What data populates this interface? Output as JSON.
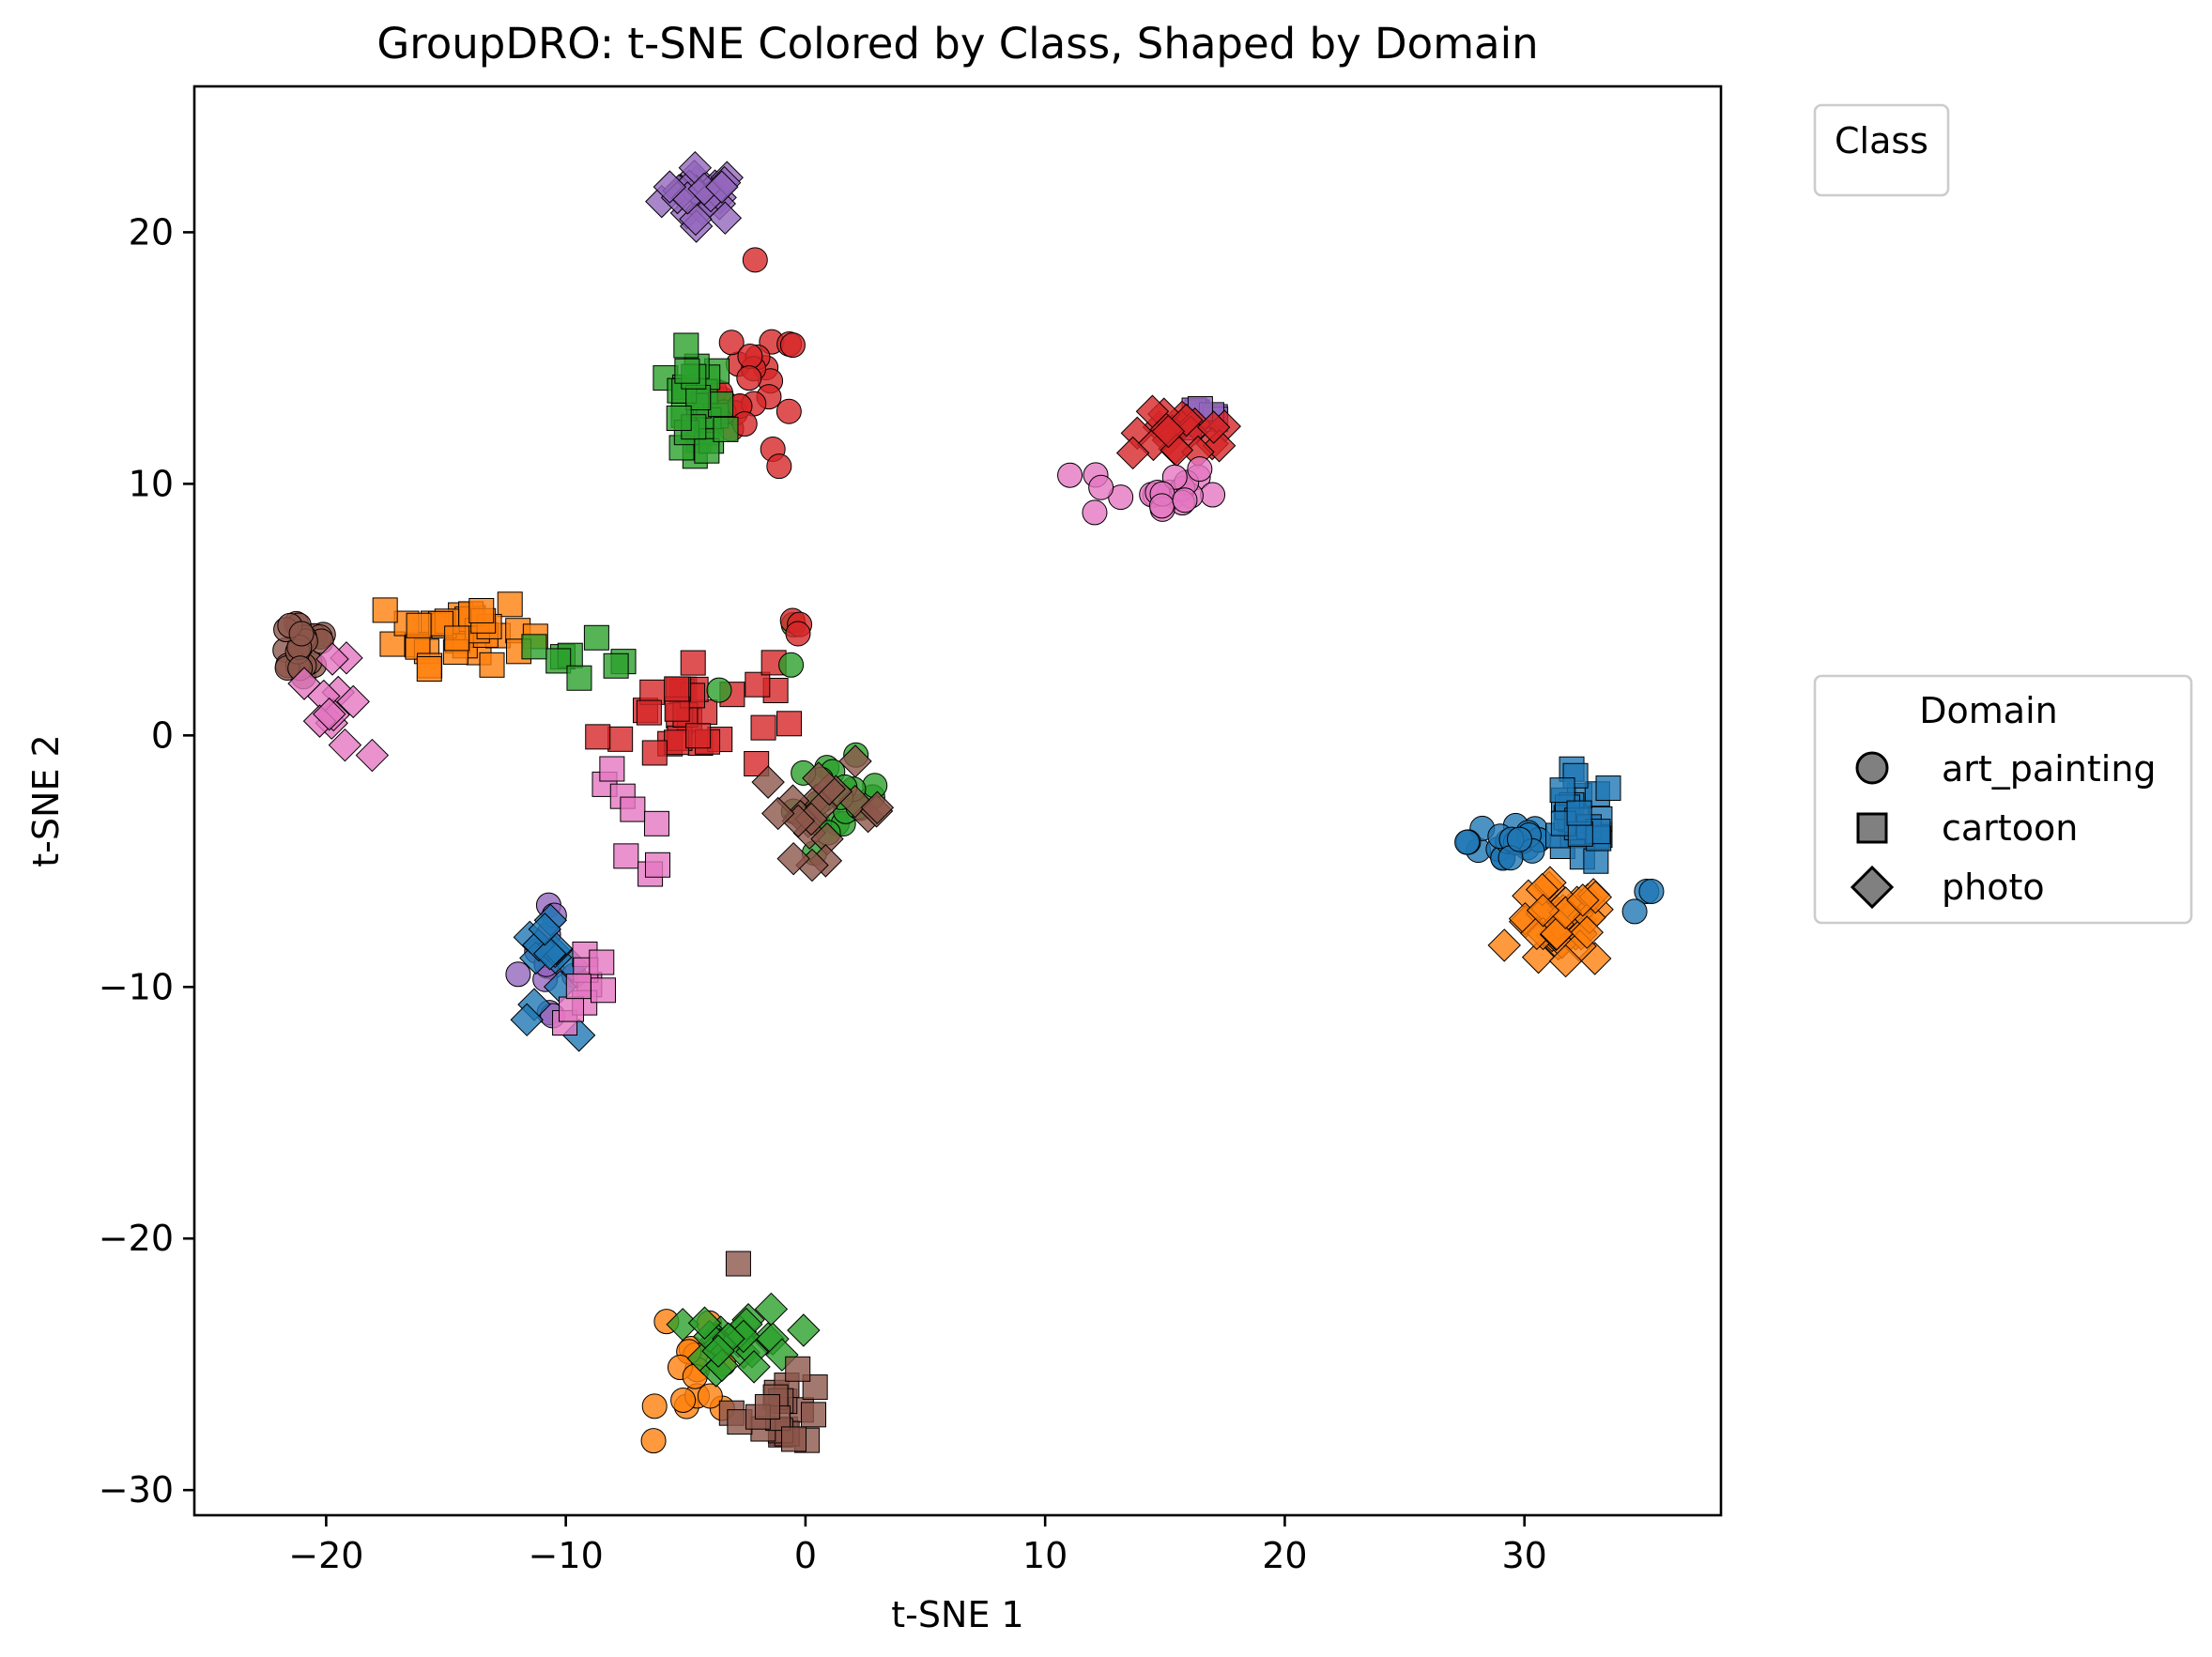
{
  "chart_data": {
    "type": "scatter",
    "title": "GroupDRO: t-SNE Colored by Class, Shaped by Domain",
    "xlabel": "t-SNE 1",
    "ylabel": "t-SNE 2",
    "xlim": [
      -25.5,
      38.2
    ],
    "ylim": [
      -31.0,
      25.8
    ],
    "xticks": [
      -20,
      -10,
      0,
      10,
      20,
      30
    ],
    "yticks": [
      -30,
      -20,
      -10,
      0,
      10,
      20
    ],
    "xtick_labels": [
      "−20",
      "−10",
      "0",
      "10",
      "20",
      "30"
    ],
    "ytick_labels": [
      "−30",
      "−20",
      "−10",
      "0",
      "10",
      "20"
    ],
    "grid": false,
    "class_legend": {
      "title": "Class",
      "placement": "upper-right-outside",
      "entries": []
    },
    "domain_legend": {
      "title": "Domain",
      "placement": "center-right-outside",
      "entries": [
        {
          "label": "art_painting",
          "marker": "circle"
        },
        {
          "label": "cartoon",
          "marker": "square"
        },
        {
          "label": "photo",
          "marker": "diamond"
        }
      ]
    },
    "class_colors": [
      "#1f77b4",
      "#ff7f0e",
      "#2ca02c",
      "#d62728",
      "#9467bd",
      "#8c564b",
      "#e377c2"
    ],
    "clusters": [
      {
        "class": 4,
        "domain": "photo",
        "cx": -4.3,
        "cy": 21.5,
        "sx": 1.1,
        "sy": 0.7,
        "n": 28
      },
      {
        "class": 3,
        "domain": "art_painting",
        "cx": -2.0,
        "cy": 13.8,
        "sx": 1.2,
        "sy": 1.6,
        "n": 24,
        "extra": [
          [
            -2.1,
            18.9
          ],
          [
            -1.1,
            10.7
          ]
        ]
      },
      {
        "class": 2,
        "domain": "cartoon",
        "cx": -4.6,
        "cy": 12.8,
        "sx": 0.8,
        "sy": 1.5,
        "n": 28
      },
      {
        "class": 4,
        "domain": "cartoon",
        "cx": 16.3,
        "cy": 12.7,
        "sx": 0.9,
        "sy": 0.5,
        "n": 8
      },
      {
        "class": 3,
        "domain": "photo",
        "cx": 15.8,
        "cy": 11.9,
        "sx": 1.5,
        "sy": 0.6,
        "n": 22
      },
      {
        "class": 6,
        "domain": "art_painting",
        "cx": 14.3,
        "cy": 9.7,
        "sx": 1.9,
        "sy": 0.8,
        "n": 22
      },
      {
        "class": 5,
        "domain": "art_painting",
        "cx": -21.0,
        "cy": 3.6,
        "sx": 0.9,
        "sy": 1.0,
        "n": 24
      },
      {
        "class": 1,
        "domain": "cartoon",
        "cx": -14.3,
        "cy": 4.2,
        "sx": 1.8,
        "sy": 0.9,
        "n": 38
      },
      {
        "class": 6,
        "domain": "photo",
        "cx": -19.7,
        "cy": 1.0,
        "sx": 0.9,
        "sy": 1.2,
        "n": 12
      },
      {
        "class": 3,
        "domain": "cartoon",
        "cx": -5.0,
        "cy": 0.8,
        "sx": 2.4,
        "sy": 1.6,
        "n": 32
      },
      {
        "class": 2,
        "domain": "cartoon",
        "cx": -8.8,
        "cy": 3.4,
        "sx": 1.4,
        "sy": 0.7,
        "n": 8
      },
      {
        "class": 2,
        "domain": "art_painting",
        "cx": 1.3,
        "cy": -2.7,
        "sx": 1.2,
        "sy": 1.1,
        "n": 22,
        "extra": [
          [
            -0.6,
            2.8
          ],
          [
            -0.5,
            4.4
          ],
          [
            -3.6,
            1.8
          ]
        ]
      },
      {
        "class": 3,
        "domain": "art_painting",
        "cx": -0.3,
        "cy": 4.6,
        "sx": 0.3,
        "sy": 0.6,
        "n": 3
      },
      {
        "class": 5,
        "domain": "photo",
        "cx": 0.8,
        "cy": -3.0,
        "sx": 1.8,
        "sy": 1.2,
        "n": 22
      },
      {
        "class": 6,
        "domain": "cartoon",
        "cx": -7.3,
        "cy": -3.5,
        "sx": 1.6,
        "sy": 1.5,
        "n": 8
      },
      {
        "class": 4,
        "domain": "art_painting",
        "cx": -10.9,
        "cy": -9.2,
        "sx": 0.9,
        "sy": 1.4,
        "n": 12
      },
      {
        "class": 0,
        "domain": "photo",
        "cx": -10.8,
        "cy": -9.4,
        "sx": 0.8,
        "sy": 1.4,
        "n": 14
      },
      {
        "class": 6,
        "domain": "cartoon",
        "cx": -9.0,
        "cy": -9.9,
        "sx": 0.7,
        "sy": 1.1,
        "n": 9
      },
      {
        "class": 0,
        "domain": "art_painting",
        "cx": 29.5,
        "cy": -4.2,
        "sx": 1.2,
        "sy": 0.8,
        "n": 24,
        "extra": [
          [
            35.1,
            -6.2
          ],
          [
            35.3,
            -6.2
          ],
          [
            34.6,
            -7.0
          ]
        ]
      },
      {
        "class": 0,
        "domain": "cartoon",
        "cx": 32.3,
        "cy": -3.5,
        "sx": 1.0,
        "sy": 1.2,
        "n": 30
      },
      {
        "class": 1,
        "domain": "photo",
        "cx": 31.5,
        "cy": -7.6,
        "sx": 1.3,
        "sy": 1.1,
        "n": 42
      },
      {
        "class": 1,
        "domain": "art_painting",
        "cx": -4.3,
        "cy": -25.7,
        "sx": 1.2,
        "sy": 1.3,
        "n": 16,
        "extra": [
          [
            -5.8,
            -23.3
          ]
        ]
      },
      {
        "class": 2,
        "domain": "photo",
        "cx": -2.6,
        "cy": -24.1,
        "sx": 1.4,
        "sy": 0.9,
        "n": 26
      },
      {
        "class": 5,
        "domain": "cartoon",
        "cx": -0.9,
        "cy": -26.8,
        "sx": 1.3,
        "sy": 0.9,
        "n": 22,
        "extra": [
          [
            -2.8,
            -21.0
          ]
        ]
      }
    ]
  }
}
